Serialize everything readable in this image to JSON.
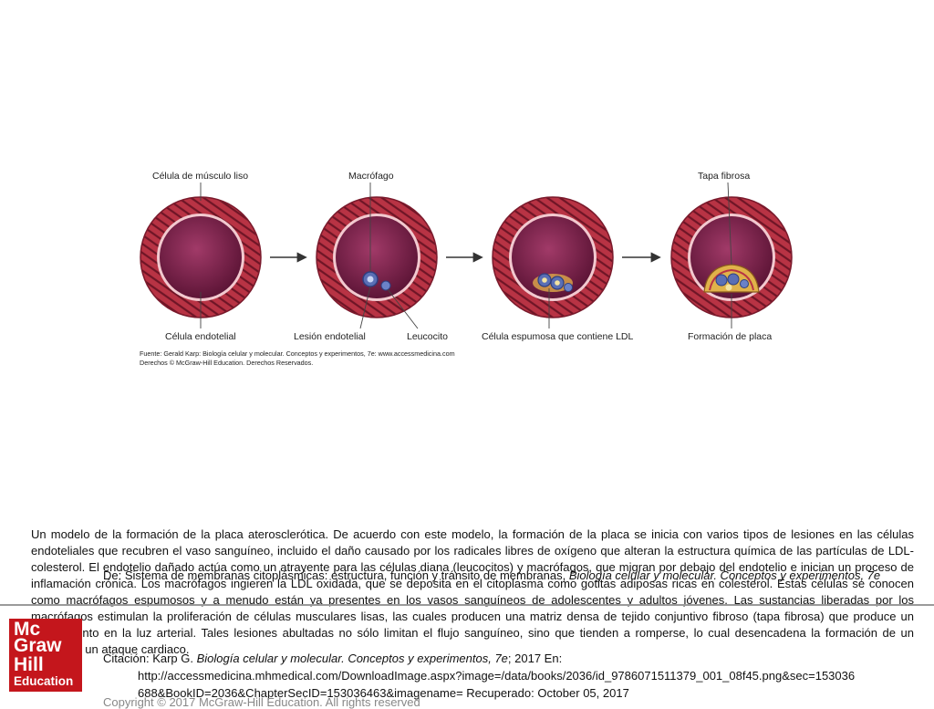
{
  "figure": {
    "labels": {
      "smooth_muscle": "Célula de músculo liso",
      "macrophage": "Macrófago",
      "fibrous_cap": "Tapa fibrosa",
      "endothelial_cell": "Célula endotelial",
      "endothelial_lesion": "Lesión endotelial",
      "leukocyte": "Leucocito",
      "foam_cell": "Célula espumosa que contiene LDL",
      "plaque_formation": "Formación de placa"
    },
    "source_line1": "Fuente: Gerald Karp: Biología celular y molecular. Conceptos y experimentos, 7e: www.accessmedicina.com",
    "source_line2": "Derechos © McGraw-Hill Education. Derechos Reservados.",
    "colors": {
      "vessel_wall": "#b83344",
      "lumen": "#7a1f46",
      "macrophage": "#5a6fb5",
      "plaque": "#e0b24a"
    }
  },
  "caption": "Un modelo de la formación de la placa aterosclerótica. De acuerdo con este modelo, la formación de la placa se inicia con varios tipos de lesiones en las células endoteliales que recubren el vaso sanguíneo, incluido el daño causado por los radicales libres de oxígeno que alteran la estructura química de las partículas de LDL-colesterol. El endotelio dañado actúa como un atrayente para las células diana (leucocitos) y macrófagos, que migran por debajo del endotelio e inician un proceso de inflamación crónica. Los macrófagos ingieren la LDL oxidada, que se deposita en el citoplasma como gotitas adiposas ricas en colesterol. Estas células se conocen como macrófagos espumosos y a menudo están ya presentes en los vasos sanguíneos de adolescentes y adultos jóvenes. Las sustancias liberadas por los macrófagos estimulan la proliferación de células musculares lisas, las cuales producen una matriz densa de tejido conjuntivo fibroso (tapa fibrosa) que produce un abultamiento en la luz arterial. Tales lesiones abultadas no sólo limitan el flujo sanguíneo, sino que tienden a romperse, lo cual desencadena la formación de un coágulo y un ataque cardiaco.",
  "credits": {
    "from_prefix": "De: ",
    "from_text": "Sistema de membranas citoplásmicas: estructura, función y tránsito de membranas, ",
    "from_book": "Biología celular y molecular. Conceptos y experimentos, 7e",
    "citation_prefix": "Citación: Karp G. ",
    "citation_book": "Biología celular y molecular. Conceptos y experimentos, 7e",
    "citation_suffix": "; 2017 En:",
    "url_line1": "http://accessmedicina.mhmedical.com/DownloadImage.aspx?image=/data/books/2036/id_9786071511379_001_08f45.png&sec=153036",
    "url_line2": "688&BookID=2036&ChapterSecID=153036463&imagename= Recuperado: October 05, 2017",
    "copyright": "Copyright © 2017 McGraw-Hill Education. All rights reserved"
  },
  "logo": {
    "line1": "Mc",
    "line2": "Graw",
    "line3": "Hill",
    "line4": "Education"
  }
}
